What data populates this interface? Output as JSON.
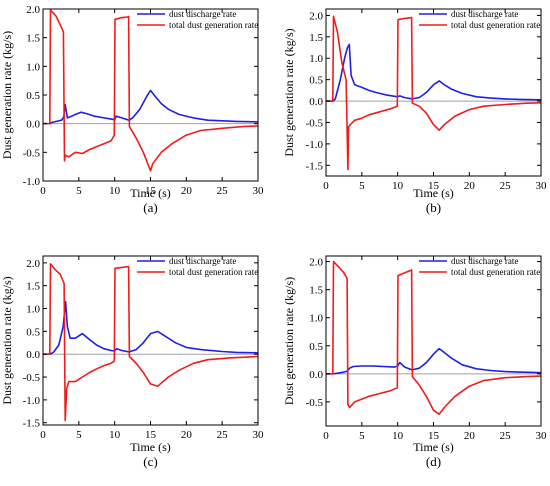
{
  "figure": {
    "colors": {
      "dust_discharge": "#1f1fe6",
      "total_generation": "#ee1c1c",
      "axis": "#000000",
      "zero_line": "#a0a0a0"
    }
  },
  "chart_data": [
    {
      "type": "line",
      "panel_label": "(a)",
      "xlabel": "Time (s)",
      "ylabel": "Dust generation rate (kg/s)",
      "xlim": [
        0,
        30
      ],
      "ylim": [
        -1.0,
        2.0
      ],
      "xticks": [
        0,
        5,
        10,
        15,
        20,
        25,
        30
      ],
      "yticks": [
        -1.0,
        -0.5,
        0.0,
        0.5,
        1.0,
        1.5,
        2.0
      ],
      "ytick_labels": [
        "-1.0",
        "-0.5",
        "0.0",
        "0.5",
        "1.0",
        "1.5",
        "2.0"
      ],
      "grid": false,
      "legend_position": "top-right",
      "series": [
        {
          "name": "dust discharge rate",
          "color": "#1f1fe6",
          "x": [
            0,
            1.0,
            1.2,
            2.6,
            2.9,
            3.1,
            3.4,
            3.8,
            4.5,
            5.3,
            6.2,
            7.2,
            8.5,
            9.5,
            10.0,
            10.2,
            11.0,
            12.0,
            12.5,
            13.5,
            14.5,
            15.0,
            15.5,
            16.5,
            17.5,
            19,
            21,
            23,
            25,
            27,
            30
          ],
          "y": [
            0,
            0,
            0.02,
            0.06,
            0.12,
            0.33,
            0.1,
            0.12,
            0.16,
            0.2,
            0.17,
            0.13,
            0.1,
            0.08,
            0.07,
            0.13,
            0.1,
            0.06,
            0.1,
            0.25,
            0.48,
            0.58,
            0.5,
            0.35,
            0.25,
            0.16,
            0.1,
            0.06,
            0.05,
            0.04,
            0.03
          ]
        },
        {
          "name": "total dust generation rate",
          "color": "#ee1c1c",
          "x": [
            0,
            0.95,
            1.05,
            1.8,
            2.5,
            2.85,
            3.0,
            3.1,
            3.6,
            4.5,
            5.5,
            6.5,
            7.5,
            8.5,
            9.5,
            9.95,
            10.05,
            11.0,
            11.8,
            11.95,
            12.05,
            13,
            14,
            15.0,
            15.3,
            16.5,
            18,
            20,
            22,
            25,
            28,
            30
          ],
          "y": [
            0,
            0,
            1.98,
            1.88,
            1.7,
            1.6,
            -0.65,
            -0.55,
            -0.58,
            -0.5,
            -0.52,
            -0.45,
            -0.4,
            -0.35,
            -0.3,
            -0.2,
            1.82,
            1.85,
            1.86,
            1.87,
            -0.05,
            -0.25,
            -0.5,
            -0.82,
            -0.7,
            -0.5,
            -0.35,
            -0.2,
            -0.12,
            -0.08,
            -0.05,
            -0.04
          ]
        }
      ]
    },
    {
      "type": "line",
      "panel_label": "(b)",
      "xlabel": "Time (s)",
      "ylabel": "Dust generation rate (kg/s)",
      "xlim": [
        0,
        30
      ],
      "ylim": [
        -1.75,
        2.15
      ],
      "xticks": [
        0,
        5,
        10,
        15,
        20,
        25,
        30
      ],
      "yticks": [
        -1.5,
        -1.0,
        -0.5,
        0.0,
        0.5,
        1.0,
        1.5,
        2.0
      ],
      "ytick_labels": [
        "-1.5",
        "-1.0",
        "-0.5",
        "0.0",
        "0.5",
        "1.0",
        "1.5",
        "2.0"
      ],
      "grid": false,
      "legend_position": "top-right",
      "series": [
        {
          "name": "dust discharge rate",
          "color": "#1f1fe6",
          "x": [
            0,
            1.0,
            1.3,
            2.0,
            2.6,
            3.0,
            3.25,
            3.5,
            4.0,
            5.0,
            6.0,
            7.0,
            8.5,
            10.0,
            10.3,
            11.0,
            12.0,
            13.0,
            14.0,
            15.0,
            15.8,
            16.5,
            17.5,
            19,
            21,
            23,
            25,
            27,
            30
          ],
          "y": [
            0,
            0,
            0.05,
            0.5,
            1.0,
            1.25,
            1.32,
            0.6,
            0.38,
            0.32,
            0.25,
            0.2,
            0.14,
            0.1,
            0.12,
            0.08,
            0.05,
            0.08,
            0.2,
            0.38,
            0.47,
            0.38,
            0.28,
            0.18,
            0.1,
            0.07,
            0.05,
            0.04,
            0.03
          ]
        },
        {
          "name": "total dust generation rate",
          "color": "#ee1c1c",
          "x": [
            0,
            0.95,
            1.05,
            1.6,
            2.2,
            2.8,
            3.05,
            3.15,
            3.4,
            4.0,
            5.0,
            6.0,
            7.5,
            9.0,
            9.95,
            10.05,
            11.0,
            11.95,
            12.05,
            13,
            14,
            15.0,
            15.8,
            16.5,
            18,
            20,
            22,
            25,
            28,
            30
          ],
          "y": [
            0,
            0,
            1.98,
            1.6,
            0.9,
            0.5,
            -1.6,
            -0.6,
            -0.55,
            -0.45,
            -0.4,
            -0.32,
            -0.25,
            -0.18,
            -0.12,
            1.9,
            1.93,
            1.95,
            -0.05,
            -0.12,
            -0.28,
            -0.55,
            -0.68,
            -0.55,
            -0.35,
            -0.2,
            -0.12,
            -0.08,
            -0.05,
            -0.04
          ]
        }
      ]
    },
    {
      "type": "line",
      "panel_label": "(c)",
      "xlabel": "Time (s)",
      "ylabel": "Dust generation rate (kg/s)",
      "xlim": [
        0,
        30
      ],
      "ylim": [
        -1.55,
        2.15
      ],
      "xticks": [
        0,
        5,
        10,
        15,
        20,
        25,
        30
      ],
      "yticks": [
        -1.5,
        -1.0,
        -0.5,
        0.0,
        0.5,
        1.0,
        1.5,
        2.0
      ],
      "ytick_labels": [
        "-1.5",
        "-1.0",
        "-0.5",
        "0.0",
        "0.5",
        "1.0",
        "1.5",
        "2.0"
      ],
      "grid": false,
      "legend_position": "top-right",
      "series": [
        {
          "name": "dust discharge rate",
          "color": "#1f1fe6",
          "x": [
            0,
            1.0,
            1.5,
            2.2,
            2.8,
            3.15,
            3.4,
            3.8,
            4.5,
            5.5,
            6.5,
            7.5,
            8.5,
            9.5,
            10.0,
            10.3,
            11.0,
            12.0,
            13.0,
            14.0,
            15.0,
            16.0,
            17.0,
            18.5,
            20,
            22,
            25,
            27,
            30
          ],
          "y": [
            0,
            0,
            0.05,
            0.2,
            0.6,
            1.15,
            0.6,
            0.35,
            0.35,
            0.45,
            0.32,
            0.2,
            0.12,
            0.08,
            0.07,
            0.12,
            0.08,
            0.05,
            0.1,
            0.25,
            0.45,
            0.5,
            0.4,
            0.25,
            0.15,
            0.1,
            0.06,
            0.04,
            0.03
          ]
        },
        {
          "name": "total dust generation rate",
          "color": "#ee1c1c",
          "x": [
            0,
            0.95,
            1.05,
            1.7,
            2.4,
            2.95,
            3.1,
            3.3,
            3.6,
            4.5,
            5.5,
            6.5,
            7.5,
            8.5,
            9.5,
            9.95,
            10.05,
            11.0,
            11.95,
            12.05,
            13,
            14,
            15.0,
            16.0,
            17.5,
            19,
            21,
            23,
            26,
            30
          ],
          "y": [
            0,
            0,
            1.98,
            1.85,
            1.75,
            1.55,
            -1.45,
            -0.75,
            -0.6,
            -0.6,
            -0.5,
            -0.4,
            -0.32,
            -0.25,
            -0.2,
            -0.15,
            1.88,
            1.9,
            1.92,
            -0.05,
            -0.2,
            -0.4,
            -0.65,
            -0.7,
            -0.5,
            -0.35,
            -0.2,
            -0.12,
            -0.08,
            -0.05
          ]
        }
      ]
    },
    {
      "type": "line",
      "panel_label": "(d)",
      "xlabel": "Time (s)",
      "ylabel": "Dust generation rate (kg/s)",
      "xlim": [
        0,
        30
      ],
      "ylim": [
        -0.93,
        2.1
      ],
      "xticks": [
        0,
        5,
        10,
        15,
        20,
        25,
        30
      ],
      "yticks": [
        -0.5,
        0.0,
        0.5,
        1.0,
        1.5,
        2.0
      ],
      "ytick_labels": [
        "-0.5",
        "0.0",
        "0.5",
        "1.0",
        "1.5",
        "2.0"
      ],
      "grid": false,
      "legend_position": "top-right",
      "series": [
        {
          "name": "dust discharge rate",
          "color": "#1f1fe6",
          "x": [
            0,
            1.0,
            1.5,
            2.5,
            3.0,
            3.3,
            3.8,
            5.0,
            6.5,
            8.0,
            9.5,
            10.0,
            10.3,
            11.0,
            12.0,
            13.0,
            14.0,
            15.0,
            15.8,
            16.5,
            17.5,
            19,
            21,
            23,
            25,
            27,
            30
          ],
          "y": [
            0,
            0,
            0.01,
            0.03,
            0.05,
            0.1,
            0.13,
            0.14,
            0.14,
            0.13,
            0.12,
            0.14,
            0.2,
            0.12,
            0.07,
            0.1,
            0.2,
            0.35,
            0.45,
            0.38,
            0.28,
            0.16,
            0.09,
            0.06,
            0.04,
            0.03,
            0.02
          ]
        },
        {
          "name": "total dust generation rate",
          "color": "#ee1c1c",
          "x": [
            0,
            0.95,
            1.05,
            1.8,
            2.5,
            2.95,
            3.05,
            3.3,
            4.0,
            5.0,
            6.0,
            7.5,
            9.0,
            9.95,
            10.05,
            11.0,
            11.95,
            12.05,
            13,
            14,
            15.0,
            15.8,
            16.5,
            18,
            20,
            22,
            25,
            28,
            30
          ],
          "y": [
            0,
            0,
            2.0,
            1.9,
            1.8,
            1.7,
            -0.55,
            -0.6,
            -0.5,
            -0.45,
            -0.4,
            -0.35,
            -0.3,
            -0.25,
            1.75,
            1.8,
            1.85,
            -0.05,
            -0.2,
            -0.4,
            -0.65,
            -0.72,
            -0.6,
            -0.4,
            -0.22,
            -0.12,
            -0.07,
            -0.05,
            -0.04
          ]
        }
      ]
    }
  ]
}
